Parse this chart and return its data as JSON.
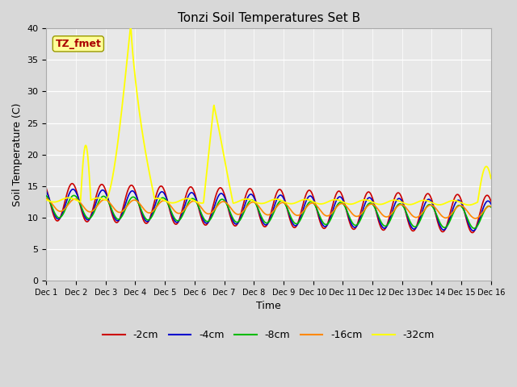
{
  "title": "Tonzi Soil Temperatures Set B",
  "xlabel": "Time",
  "ylabel": "Soil Temperature (C)",
  "xlim": [
    0,
    15
  ],
  "ylim": [
    0,
    40
  ],
  "yticks": [
    0,
    5,
    10,
    15,
    20,
    25,
    30,
    35,
    40
  ],
  "xtick_labels": [
    "Dec 1",
    "Dec 2",
    "Dec 3",
    "Dec 4",
    "Dec 5",
    "Dec 6",
    "Dec 7",
    "Dec 8",
    "Dec 9",
    "Dec 10",
    "Dec 11",
    "Dec 12",
    "Dec 13",
    "Dec 14",
    "Dec 15",
    "Dec 16"
  ],
  "legend_labels": [
    "-2cm",
    "-4cm",
    "-8cm",
    "-16cm",
    "-32cm"
  ],
  "legend_colors": [
    "#cc0000",
    "#0000cc",
    "#00bb00",
    "#ff8800",
    "#ffff00"
  ],
  "annotation_text": "TZ_fmet",
  "annotation_bg": "#ffff99",
  "annotation_fg": "#aa0000",
  "bg_color": "#e8e8e8",
  "fig_bg": "#d8d8d8",
  "figsize": [
    6.4,
    4.8
  ],
  "dpi": 100
}
